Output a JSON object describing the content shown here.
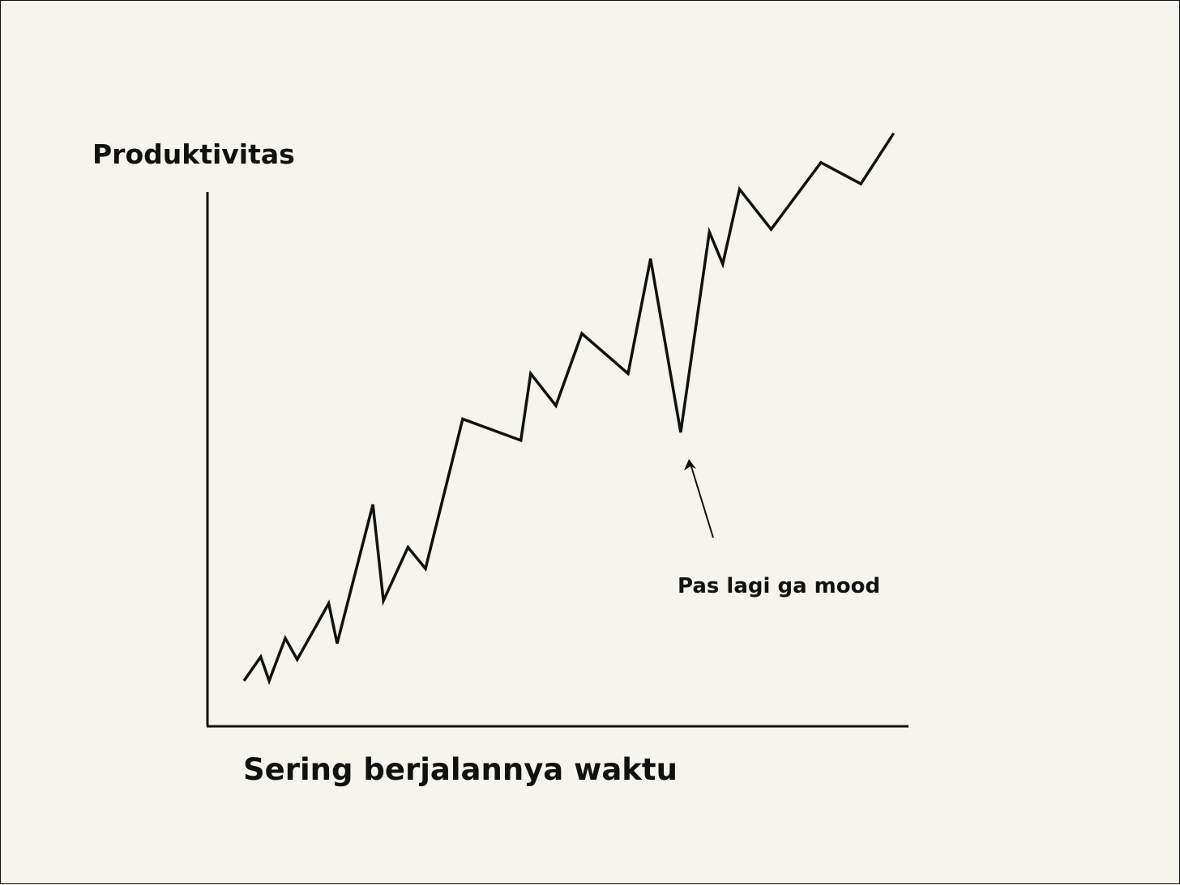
{
  "colors": {
    "background": "#f5f4ee",
    "ink": "#111111"
  },
  "chart_data": {
    "type": "line",
    "title": "",
    "ylabel": "Produktivitas",
    "xlabel": "Sering berjalannya waktu",
    "xlim": [
      0,
      100
    ],
    "ylim": [
      0,
      100
    ],
    "grid": false,
    "legend": "none",
    "series": [
      {
        "x": [
          5.2,
          7.6,
          8.8,
          11.1,
          12.8,
          17.3,
          18.5,
          23.6,
          25.1,
          28.6,
          31.1,
          36.4,
          44.7,
          46.1,
          49.7,
          53.4,
          60.0,
          63.2,
          67.5,
          71.6,
          73.5,
          75.9,
          80.4,
          87.5,
          93.2,
          97.9
        ],
        "y": [
          8.5,
          13.0,
          8.5,
          16.5,
          12.5,
          23.0,
          15.5,
          41.5,
          23.5,
          33.5,
          29.5,
          57.5,
          53.5,
          66.0,
          60.0,
          73.5,
          66.0,
          87.5,
          55.0,
          92.5,
          86.5,
          100.5,
          93.0,
          105.5,
          101.5,
          111.0
        ]
      }
    ],
    "annotations": [
      {
        "text": "Pas lagi ga mood",
        "x": 67.5,
        "y": 55.0
      }
    ]
  }
}
